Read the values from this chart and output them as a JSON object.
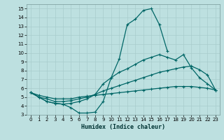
{
  "xlabel": "Humidex (Indice chaleur)",
  "xlim": [
    -0.5,
    23.5
  ],
  "ylim": [
    3,
    15.5
  ],
  "yticks": [
    3,
    4,
    5,
    6,
    7,
    8,
    9,
    10,
    11,
    12,
    13,
    14,
    15
  ],
  "xticks": [
    0,
    1,
    2,
    3,
    4,
    5,
    6,
    7,
    8,
    9,
    10,
    11,
    12,
    13,
    14,
    15,
    16,
    17,
    18,
    19,
    20,
    21,
    22,
    23
  ],
  "bg_color": "#bde0e0",
  "line_color": "#006666",
  "grid_color": "#a8cccc",
  "lines": [
    {
      "x": [
        0,
        1,
        2,
        3,
        4,
        5,
        6,
        7,
        8,
        9,
        10,
        11,
        12,
        13,
        14,
        15,
        16,
        17
      ],
      "y": [
        5.5,
        5.0,
        4.5,
        4.3,
        4.2,
        3.8,
        3.2,
        3.2,
        3.3,
        4.5,
        7.2,
        9.3,
        13.2,
        13.8,
        14.8,
        15.0,
        13.2,
        10.2
      ]
    },
    {
      "x": [
        0,
        1,
        2,
        3,
        4,
        5,
        6,
        7,
        8,
        9,
        10,
        11,
        12,
        13,
        14,
        15,
        16,
        17,
        18,
        19,
        20,
        21,
        22,
        23
      ],
      "y": [
        5.5,
        5.0,
        4.5,
        4.3,
        4.2,
        4.3,
        4.5,
        4.8,
        5.3,
        6.5,
        7.2,
        7.8,
        8.2,
        8.7,
        9.2,
        9.5,
        9.8,
        9.5,
        9.2,
        9.8,
        8.3,
        7.2,
        6.5,
        5.8
      ]
    },
    {
      "x": [
        0,
        1,
        2,
        3,
        4,
        5,
        6,
        7,
        8,
        9,
        10,
        11,
        12,
        13,
        14,
        15,
        16,
        17,
        18,
        19,
        20,
        21,
        22,
        23
      ],
      "y": [
        5.5,
        5.0,
        4.8,
        4.5,
        4.5,
        4.6,
        4.8,
        5.0,
        5.3,
        5.7,
        6.0,
        6.3,
        6.6,
        6.9,
        7.2,
        7.5,
        7.8,
        8.0,
        8.2,
        8.4,
        8.5,
        8.1,
        7.5,
        5.8
      ]
    },
    {
      "x": [
        0,
        1,
        2,
        3,
        4,
        5,
        6,
        7,
        8,
        9,
        10,
        11,
        12,
        13,
        14,
        15,
        16,
        17,
        18,
        19,
        20,
        21,
        22,
        23
      ],
      "y": [
        5.5,
        5.2,
        5.0,
        4.8,
        4.8,
        4.8,
        5.0,
        5.1,
        5.2,
        5.3,
        5.4,
        5.5,
        5.6,
        5.7,
        5.8,
        5.9,
        6.0,
        6.1,
        6.2,
        6.2,
        6.2,
        6.1,
        6.0,
        5.8
      ]
    }
  ]
}
